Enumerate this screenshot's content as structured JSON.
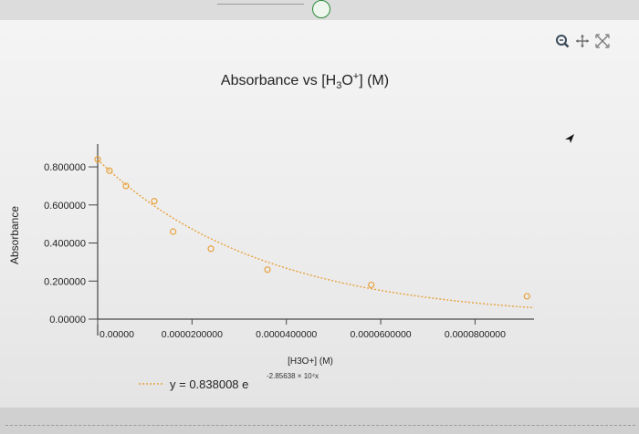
{
  "chart_data": {
    "type": "scatter",
    "title": "Absorbance vs [H3O+] (M)",
    "title_parts": {
      "prefix": "Absorbance vs [H",
      "sub": "3",
      "mid": "O",
      "sup": "+",
      "suffix": "] (M)"
    },
    "xlabel": "[H3O+] (M)",
    "ylabel": "Absorbance",
    "x_ticks": [
      "0.00000",
      "0.0000200000",
      "0.0000400000",
      "0.0000600000",
      "0.0000800000"
    ],
    "x_tick_values": [
      0,
      2e-05,
      4e-05,
      6e-05,
      8e-05
    ],
    "y_ticks": [
      "0.00000",
      "0.200000",
      "0.400000",
      "0.600000",
      "0.800000"
    ],
    "y_tick_values": [
      0,
      0.2,
      0.4,
      0.6,
      0.8
    ],
    "xlim": [
      0,
      9.25e-05
    ],
    "ylim": [
      0,
      0.92
    ],
    "grid": false,
    "series": [
      {
        "points": [
          {
            "x": 0.0,
            "y": 0.84
          },
          {
            "x": 2.5e-06,
            "y": 0.78
          },
          {
            "x": 6e-06,
            "y": 0.7
          },
          {
            "x": 1.2e-05,
            "y": 0.62
          },
          {
            "x": 1.6e-05,
            "y": 0.46
          },
          {
            "x": 2.4e-05,
            "y": 0.37
          },
          {
            "x": 3.6e-05,
            "y": 0.26
          },
          {
            "x": 5.8e-05,
            "y": 0.18
          },
          {
            "x": 9.1e-05,
            "y": 0.12
          }
        ],
        "color": "#e8a23c"
      }
    ],
    "trendline": {
      "type": "exponential",
      "label_prefix": "y = 0.838008 e",
      "exponent": "-2.85638 × 10⁴x",
      "a": 0.838008,
      "b": -28563.8,
      "color": "#e8a23c"
    }
  },
  "toolbar": {
    "icons": [
      "zoom-icon",
      "pan-icon",
      "reset-axes-icon"
    ]
  }
}
